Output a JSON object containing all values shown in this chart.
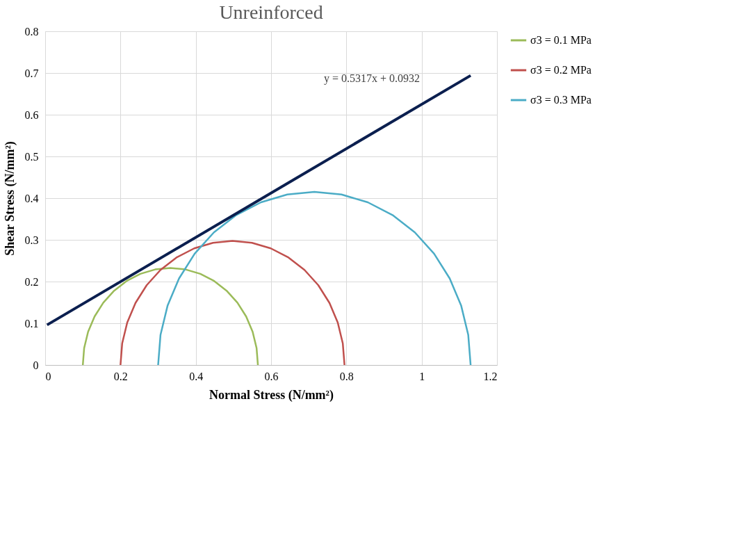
{
  "chart_data": {
    "type": "line",
    "title": "Unreinforced",
    "xlabel": "Normal Stress (N/mm²)",
    "ylabel": "Shear Stress  (N/mm²)",
    "xlim": [
      0,
      1.2
    ],
    "xticks": [
      0,
      0.2,
      0.4,
      0.6,
      0.8,
      1,
      1.2
    ],
    "ylim": [
      0,
      0.8
    ],
    "yticks": [
      0,
      0.1,
      0.2,
      0.3,
      0.4,
      0.5,
      0.6,
      0.7,
      0.8
    ],
    "grid": true,
    "legend": "right",
    "marker": "none",
    "line_style": "solid",
    "series": [
      {
        "name": "σ3 = 0.1 MPa",
        "color": "#9bbb59",
        "x": [
          0.1,
          0.1035,
          0.114,
          0.1312,
          0.1544,
          0.1831,
          0.2162,
          0.253,
          0.2921,
          0.3325,
          0.3729,
          0.412,
          0.4488,
          0.4819,
          0.5106,
          0.5338,
          0.551,
          0.5615,
          0.565
        ],
        "values": [
          0,
          0.0404,
          0.0795,
          0.1163,
          0.1494,
          0.1781,
          0.2013,
          0.2185,
          0.229,
          0.2325,
          0.229,
          0.2185,
          0.2013,
          0.1781,
          0.1494,
          0.1163,
          0.0795,
          0.0404,
          0
        ]
      },
      {
        "name": "σ3 = 0.2 MPa",
        "color": "#c0504d",
        "x": [
          0.2,
          0.2045,
          0.2179,
          0.2399,
          0.2696,
          0.3063,
          0.3487,
          0.3958,
          0.4459,
          0.4975,
          0.5491,
          0.5992,
          0.6463,
          0.6887,
          0.7254,
          0.7551,
          0.7771,
          0.7905,
          0.795
        ],
        "values": [
          0,
          0.0516,
          0.1017,
          0.1488,
          0.1912,
          0.2279,
          0.2576,
          0.2796,
          0.293,
          0.2975,
          0.293,
          0.2796,
          0.2576,
          0.2279,
          0.1912,
          0.1488,
          0.1017,
          0.0516,
          0
        ]
      },
      {
        "name": "σ3 = 0.3 MPa",
        "color": "#4bacc6",
        "x": [
          0.3,
          0.3063,
          0.325,
          0.3556,
          0.3971,
          0.4482,
          0.5075,
          0.5731,
          0.643,
          0.715,
          0.787,
          0.8569,
          0.9225,
          0.9818,
          1.0329,
          1.0744,
          1.105,
          1.1237,
          1.13
        ],
        "values": [
          0,
          0.072,
          0.1419,
          0.2075,
          0.2668,
          0.3179,
          0.3594,
          0.39,
          0.4087,
          0.415,
          0.4087,
          0.39,
          0.3594,
          0.3179,
          0.2668,
          0.2075,
          0.1419,
          0.072,
          0
        ]
      },
      {
        "type": "line",
        "color": "#0b1f4f",
        "x": [
          0.005,
          1.13
        ],
        "values": [
          0.096,
          0.694
        ]
      }
    ],
    "annotations": [
      "y = 0.5317x + 0.0932"
    ]
  }
}
